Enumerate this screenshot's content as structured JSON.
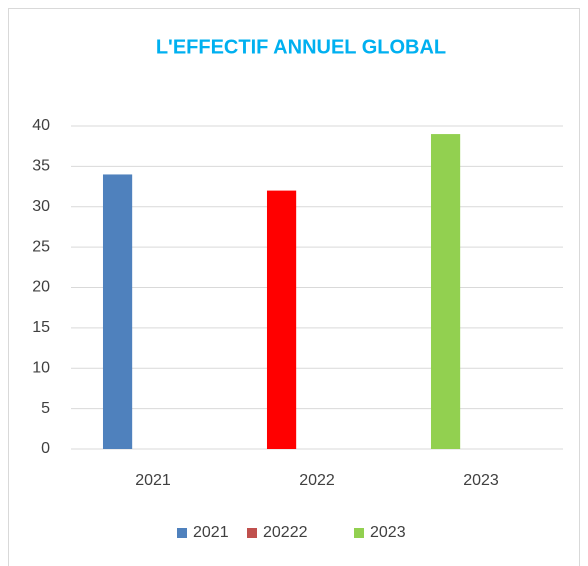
{
  "chart_data": {
    "type": "bar",
    "title": "L'EFFECTIF ANNUEL GLOBAL",
    "categories": [
      "2021",
      "2022",
      "2023"
    ],
    "series": [
      {
        "name": "2021",
        "color": "#4f81bd",
        "values": [
          34,
          null,
          null
        ]
      },
      {
        "name": "20222",
        "color": "#c0504d",
        "bar_color": "#ff0000",
        "values": [
          null,
          32,
          null
        ]
      },
      {
        "name": "2023",
        "color": "#92d050",
        "values": [
          null,
          null,
          39
        ]
      }
    ],
    "ylim": [
      0,
      40
    ],
    "yticks": [
      0,
      5,
      10,
      15,
      20,
      25,
      30,
      35,
      40
    ],
    "grid": true,
    "legend": "bottom"
  }
}
